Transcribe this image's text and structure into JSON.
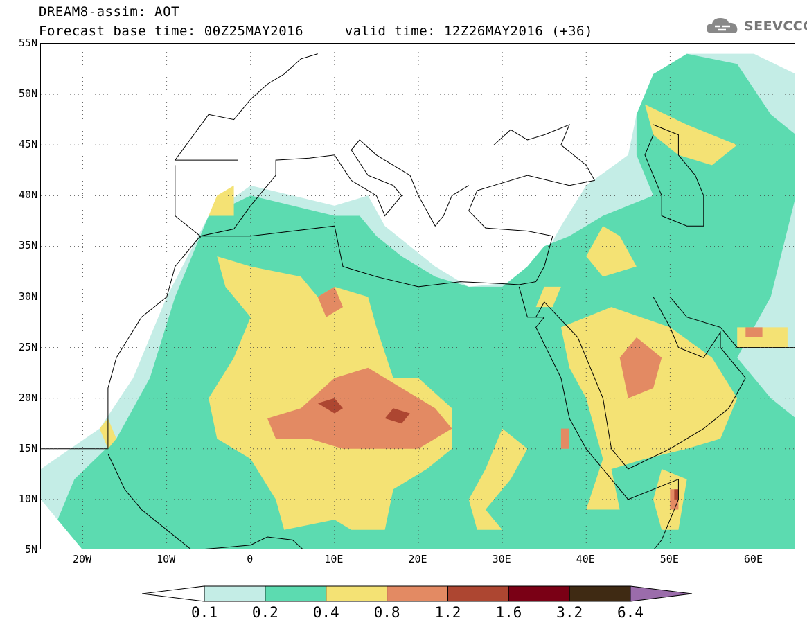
{
  "title": {
    "line1": "DREAM8-assim: AOT",
    "line2": "Forecast base time: 00Z25MAY2016     valid time: 12Z26MAY2016 (+36)"
  },
  "logo": {
    "text": "SEEVCCC",
    "icon": "cloud-icon",
    "color": "#888888"
  },
  "map": {
    "projection": "lat-lon",
    "lon_range": [
      -25,
      65
    ],
    "lat_range": [
      5,
      55
    ],
    "lat_ticks": [
      {
        "value": 55,
        "label": "55N"
      },
      {
        "value": 50,
        "label": "50N"
      },
      {
        "value": 45,
        "label": "45N"
      },
      {
        "value": 40,
        "label": "40N"
      },
      {
        "value": 35,
        "label": "35N"
      },
      {
        "value": 30,
        "label": "30N"
      },
      {
        "value": 25,
        "label": "25N"
      },
      {
        "value": 20,
        "label": "20N"
      },
      {
        "value": 15,
        "label": "15N"
      },
      {
        "value": 10,
        "label": "10N"
      },
      {
        "value": 5,
        "label": "5N"
      }
    ],
    "lon_ticks": [
      {
        "value": -20,
        "label": "20W"
      },
      {
        "value": -10,
        "label": "10W"
      },
      {
        "value": 0,
        "label": "0"
      },
      {
        "value": 10,
        "label": "10E"
      },
      {
        "value": 20,
        "label": "20E"
      },
      {
        "value": 30,
        "label": "30E"
      },
      {
        "value": 40,
        "label": "40E"
      },
      {
        "value": 50,
        "label": "50E"
      },
      {
        "value": 60,
        "label": "60E"
      }
    ],
    "grid": "dotted",
    "fields": [
      {
        "level": 1,
        "rings": [
          [
            [
              -25,
              13
            ],
            [
              -18,
              17
            ],
            [
              -14,
              22
            ],
            [
              -10,
              30
            ],
            [
              -5,
              38
            ],
            [
              0,
              41
            ],
            [
              5,
              40
            ],
            [
              10,
              39
            ],
            [
              14,
              40
            ],
            [
              16,
              37
            ],
            [
              22,
              33
            ],
            [
              26,
              31
            ],
            [
              32,
              31.5
            ],
            [
              35,
              34
            ],
            [
              37,
              37
            ],
            [
              40,
              41
            ],
            [
              45,
              44
            ],
            [
              46,
              48
            ],
            [
              48,
              52
            ],
            [
              52,
              54
            ],
            [
              60,
              54
            ],
            [
              65,
              52
            ],
            [
              65,
              5
            ],
            [
              -17,
              5
            ],
            [
              -22,
              7
            ],
            [
              -25,
              10
            ]
          ]
        ]
      },
      {
        "level": 2,
        "rings": [
          [
            [
              -23,
              8
            ],
            [
              -21,
              12
            ],
            [
              -16,
              16
            ],
            [
              -12,
              22
            ],
            [
              -9,
              30
            ],
            [
              -5,
              38
            ],
            [
              0,
              40
            ],
            [
              5,
              39
            ],
            [
              10,
              38
            ],
            [
              13,
              38
            ],
            [
              15,
              36
            ],
            [
              18,
              34
            ],
            [
              22,
              32
            ],
            [
              26,
              31
            ],
            [
              30,
              31
            ],
            [
              33,
              33
            ],
            [
              35,
              35
            ],
            [
              38,
              36
            ],
            [
              42,
              38
            ],
            [
              48,
              40
            ],
            [
              46,
              44
            ],
            [
              46,
              48
            ],
            [
              48,
              52
            ],
            [
              52,
              54
            ],
            [
              58,
              53
            ],
            [
              62,
              48
            ],
            [
              65,
              46
            ],
            [
              65,
              40
            ],
            [
              62,
              30
            ],
            [
              58,
              24
            ],
            [
              62,
              20
            ],
            [
              65,
              18
            ],
            [
              65,
              5
            ],
            [
              -20,
              5
            ]
          ],
          [
            [
              10,
              29
            ],
            [
              20,
              30
            ],
            [
              26,
              29
            ],
            [
              30,
              26
            ],
            [
              28,
              21
            ],
            [
              22,
              20
            ],
            [
              18,
              22
            ],
            [
              14,
              26
            ]
          ],
          [
            [
              36,
              27
            ],
            [
              40,
              29
            ],
            [
              44,
              27
            ],
            [
              42,
              24
            ],
            [
              38,
              24
            ]
          ],
          [
            [
              -16,
              9
            ],
            [
              -12,
              11
            ],
            [
              -10,
              8
            ],
            [
              -14,
              7
            ]
          ]
        ]
      },
      {
        "level": 3,
        "rings": [
          [
            [
              -4,
              34
            ],
            [
              0,
              33
            ],
            [
              6,
              32
            ],
            [
              8,
              30
            ],
            [
              10,
              31
            ],
            [
              14,
              30
            ],
            [
              15,
              27
            ],
            [
              17,
              22
            ],
            [
              20,
              22
            ],
            [
              24,
              19
            ],
            [
              24,
              15
            ],
            [
              21,
              13
            ],
            [
              17,
              11
            ],
            [
              16,
              7
            ],
            [
              12,
              7
            ],
            [
              10,
              8
            ],
            [
              4,
              7
            ],
            [
              3,
              10
            ],
            [
              0,
              14
            ],
            [
              -4,
              16
            ],
            [
              -5,
              20
            ],
            [
              -2,
              24
            ],
            [
              0,
              28
            ],
            [
              -3,
              31
            ]
          ],
          [
            [
              -4,
              40
            ],
            [
              -2,
              41
            ],
            [
              -2,
              38
            ],
            [
              -5,
              38
            ]
          ],
          [
            [
              42,
              37
            ],
            [
              44,
              36
            ],
            [
              46,
              33
            ],
            [
              42,
              32
            ],
            [
              40,
              34
            ]
          ],
          [
            [
              37,
              27
            ],
            [
              43,
              29
            ],
            [
              50,
              27
            ],
            [
              55,
              24
            ],
            [
              58,
              20
            ],
            [
              56,
              16
            ],
            [
              52,
              15
            ],
            [
              47,
              14
            ],
            [
              43,
              13
            ],
            [
              44,
              9
            ],
            [
              40,
              9
            ],
            [
              42,
              14
            ],
            [
              40,
              20
            ],
            [
              38,
              23
            ]
          ],
          [
            [
              30,
              17
            ],
            [
              33,
              15
            ],
            [
              31,
              12
            ],
            [
              28,
              9
            ],
            [
              30,
              7
            ],
            [
              27,
              7
            ],
            [
              26,
              10
            ],
            [
              28,
              13
            ]
          ],
          [
            [
              49,
              13
            ],
            [
              52,
              12
            ],
            [
              51,
              7
            ],
            [
              49,
              7
            ],
            [
              48,
              10
            ]
          ],
          [
            [
              47,
              49
            ],
            [
              52,
              47
            ],
            [
              58,
              45
            ],
            [
              55,
              43
            ],
            [
              51,
              44
            ],
            [
              48,
              46
            ]
          ],
          [
            [
              -17,
              18
            ],
            [
              -16,
              16
            ],
            [
              -17,
              15
            ],
            [
              -18,
              17
            ]
          ],
          [
            [
              35,
              31
            ],
            [
              37,
              31
            ],
            [
              36,
              29
            ],
            [
              34,
              29
            ]
          ],
          [
            [
              58,
              27
            ],
            [
              64,
              27
            ],
            [
              64,
              25
            ],
            [
              58,
              25
            ]
          ]
        ]
      },
      {
        "level": 4,
        "rings": [
          [
            [
              2,
              18
            ],
            [
              6,
              19
            ],
            [
              10,
              22
            ],
            [
              14,
              23
            ],
            [
              18,
              21
            ],
            [
              22,
              19
            ],
            [
              24,
              17
            ],
            [
              20,
              15
            ],
            [
              15,
              15
            ],
            [
              11,
              15
            ],
            [
              7,
              16
            ],
            [
              3,
              16
            ]
          ],
          [
            [
              44,
              24
            ],
            [
              46,
              26
            ],
            [
              49,
              24
            ],
            [
              48,
              21
            ],
            [
              45,
              20
            ]
          ],
          [
            [
              8,
              30
            ],
            [
              10,
              31
            ],
            [
              11,
              29
            ],
            [
              9,
              28
            ]
          ],
          [
            [
              59,
              27
            ],
            [
              61,
              27
            ],
            [
              61,
              26
            ],
            [
              59,
              26
            ]
          ],
          [
            [
              37,
              17
            ],
            [
              38,
              17
            ],
            [
              38,
              15
            ],
            [
              37,
              15
            ]
          ],
          [
            [
              50,
              11
            ],
            [
              51,
              11
            ],
            [
              51,
              9
            ],
            [
              50,
              9
            ]
          ]
        ]
      },
      {
        "level": 5,
        "rings": [
          [
            [
              8,
              19.5
            ],
            [
              10,
              20
            ],
            [
              11,
              19
            ],
            [
              10,
              18.5
            ]
          ],
          [
            [
              16,
              18
            ],
            [
              17,
              19
            ],
            [
              19,
              18.5
            ],
            [
              18,
              17.5
            ]
          ],
          [
            [
              50.5,
              11
            ],
            [
              51,
              11
            ],
            [
              51,
              10
            ],
            [
              50.5,
              10
            ]
          ]
        ]
      }
    ]
  },
  "colorbar": {
    "levels": [
      0.1,
      0.2,
      0.4,
      0.8,
      1.2,
      1.6,
      3.2,
      6.4
    ],
    "tick_labels": [
      "0.1",
      "0.2",
      "0.4",
      "0.8",
      "1.2",
      "1.6",
      "3.2",
      "6.4"
    ],
    "colors": [
      "#ffffff",
      "#c4ede6",
      "#5cdbb0",
      "#f4e274",
      "#e38a63",
      "#ad4631",
      "#7a0015",
      "#3f2a13",
      "#9b6cab"
    ]
  }
}
